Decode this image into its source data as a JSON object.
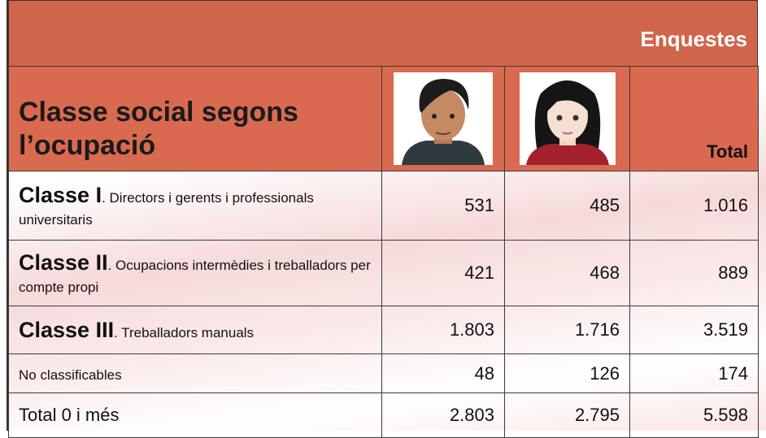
{
  "header": {
    "title": "Enquestes"
  },
  "table": {
    "heading": "Classe social segons l’ocupació",
    "total_heading": "Total",
    "rows": [
      {
        "label_bold": "Classe I",
        "label": ". Directors i gerents i professionals universitaris",
        "values": [
          "531",
          "485",
          "1.016"
        ]
      },
      {
        "label_bold": "Classe II",
        "label": ". Ocupacions intermèdies i treballadors per compte propi",
        "values": [
          "421",
          "468",
          "889"
        ]
      },
      {
        "label_bold": "Classe III",
        "label": ". Treballadors manuals",
        "values": [
          "1.803",
          "1.716",
          "3.519"
        ]
      },
      {
        "label": "No classificables",
        "values": [
          "48",
          "126",
          "174"
        ]
      },
      {
        "label": "Total 0 i més",
        "values": [
          "2.803",
          "2.795",
          "5.598"
        ]
      }
    ]
  }
}
